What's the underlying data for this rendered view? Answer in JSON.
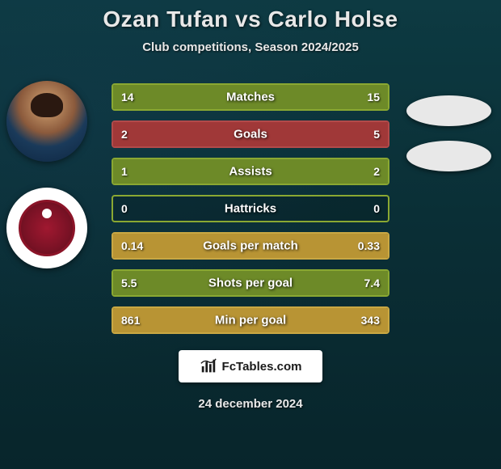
{
  "title": "Ozan Tufan vs Carlo Holse",
  "subtitle": "Club competitions, Season 2024/2025",
  "date": "24 december 2024",
  "footer_brand": "FcTables.com",
  "colors": {
    "border_green": "#8aa832",
    "fill_green": "#6d8a28",
    "border_red": "#b24a4a",
    "fill_red": "#a03838",
    "border_yellow": "#c9a843",
    "fill_yellow": "#b89434"
  },
  "bars": [
    {
      "label": "Matches",
      "left": "14",
      "right": "15",
      "left_pct": 48.3,
      "right_pct": 51.7,
      "scheme": "green"
    },
    {
      "label": "Goals",
      "left": "2",
      "right": "5",
      "left_pct": 28.6,
      "right_pct": 71.4,
      "scheme": "red"
    },
    {
      "label": "Assists",
      "left": "1",
      "right": "2",
      "left_pct": 33.3,
      "right_pct": 66.7,
      "scheme": "green"
    },
    {
      "label": "Hattricks",
      "left": "0",
      "right": "0",
      "left_pct": 0,
      "right_pct": 0,
      "scheme": "green"
    },
    {
      "label": "Goals per match",
      "left": "0.14",
      "right": "0.33",
      "left_pct": 29.8,
      "right_pct": 70.2,
      "scheme": "yellow"
    },
    {
      "label": "Shots per goal",
      "left": "5.5",
      "right": "7.4",
      "left_pct": 42.6,
      "right_pct": 57.4,
      "scheme": "green"
    },
    {
      "label": "Min per goal",
      "left": "861",
      "right": "343",
      "left_pct": 71.5,
      "right_pct": 28.5,
      "scheme": "yellow"
    }
  ]
}
